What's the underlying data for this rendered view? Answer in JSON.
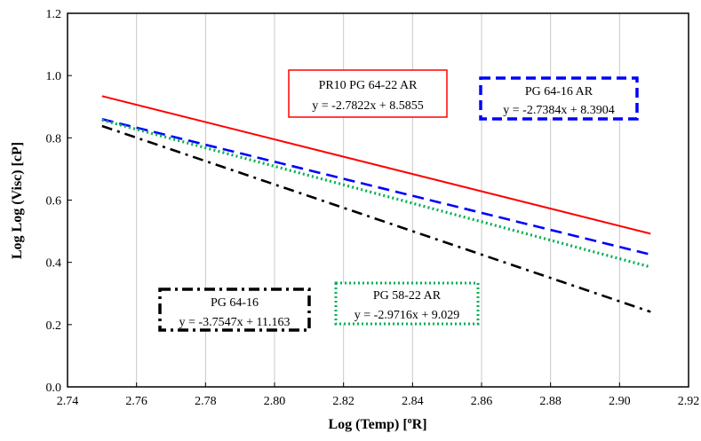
{
  "chart_data": {
    "type": "line",
    "xlabel_main": "Log (Temp)  [",
    "xlabel_sup": "o",
    "xlabel_end": "R]",
    "ylabel": "Log Log (Visc)  [cP]",
    "xlim": [
      2.74,
      2.92
    ],
    "ylim": [
      0.0,
      1.2
    ],
    "xticks": [
      "2.74",
      "2.76",
      "2.78",
      "2.80",
      "2.82",
      "2.84",
      "2.86",
      "2.88",
      "2.90",
      "2.92"
    ],
    "yticks": [
      "0.0",
      "0.2",
      "0.4",
      "0.6",
      "0.8",
      "1.0",
      "1.2"
    ],
    "grid": "vertical",
    "series": [
      {
        "slope": -2.7822,
        "intercept": 8.5855,
        "x": [
          2.75,
          2.909
        ],
        "y": [
          0.934,
          0.492
        ],
        "color": "#ff0000",
        "dash": "solid"
      },
      {
        "slope": -2.7384,
        "intercept": 8.3904,
        "x": [
          2.75,
          2.909
        ],
        "y": [
          0.86,
          0.425
        ],
        "color": "#0000ff",
        "dash": "dashed"
      },
      {
        "slope": -2.9716,
        "intercept": 9.029,
        "x": [
          2.75,
          2.909
        ],
        "y": [
          0.857,
          0.385
        ],
        "color": "#00b050",
        "dash": "dotted"
      },
      {
        "slope": -3.7547,
        "intercept": 11.163,
        "x": [
          2.75,
          2.909
        ],
        "y": [
          0.838,
          0.241
        ],
        "color": "#000000",
        "dash": "dashdot"
      }
    ],
    "annotations": [
      {
        "name": "PR10 PG 64-22 AR",
        "equation": "y = -2.7822x + 8.5855",
        "color": "#ff0000",
        "border": "solid"
      },
      {
        "name": "PG 64-16 AR",
        "equation": "y = -2.7384x + 8.3904",
        "color": "#0000ff",
        "border": "dashed"
      },
      {
        "name": "PG 58-22 AR",
        "equation": "y = -2.9716x + 9.029",
        "color": "#00b050",
        "border": "dotted"
      },
      {
        "name": "PG 64-16",
        "equation": "y = -3.7547x + 11.163",
        "color": "#000000",
        "border": "dashdot"
      }
    ]
  }
}
